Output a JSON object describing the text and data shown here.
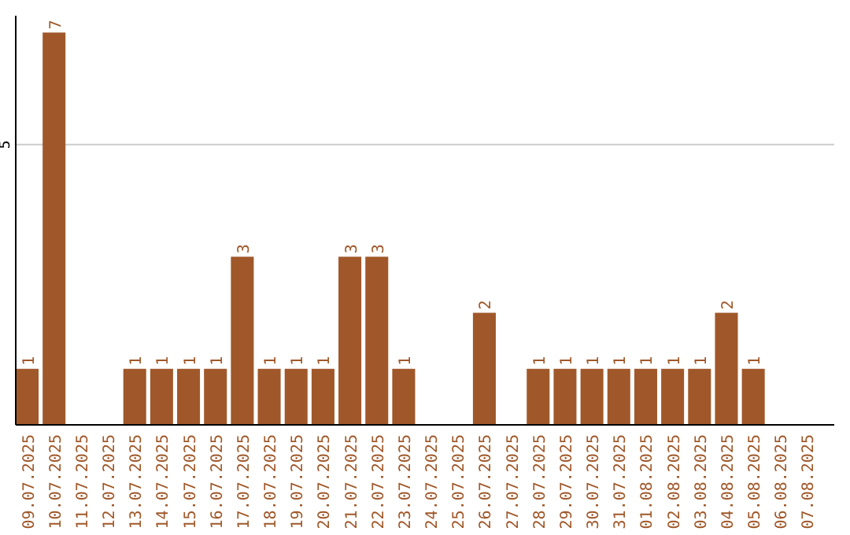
{
  "chart_data": {
    "type": "bar",
    "categories": [
      "09.07.2025",
      "10.07.2025",
      "11.07.2025",
      "12.07.2025",
      "13.07.2025",
      "14.07.2025",
      "15.07.2025",
      "16.07.2025",
      "17.07.2025",
      "18.07.2025",
      "19.07.2025",
      "20.07.2025",
      "21.07.2025",
      "22.07.2025",
      "23.07.2025",
      "24.07.2025",
      "25.07.2025",
      "26.07.2025",
      "27.07.2025",
      "28.07.2025",
      "29.07.2025",
      "30.07.2025",
      "31.07.2025",
      "01.08.2025",
      "02.08.2025",
      "03.08.2025",
      "04.08.2025",
      "05.08.2025",
      "06.08.2025",
      "07.08.2025"
    ],
    "values": [
      1,
      7,
      null,
      null,
      1,
      1,
      1,
      1,
      3,
      1,
      1,
      1,
      3,
      3,
      1,
      null,
      null,
      2,
      null,
      1,
      1,
      1,
      1,
      1,
      1,
      1,
      2,
      1,
      null,
      null
    ],
    "color": "#a0582a",
    "ylim": [
      0,
      7.3
    ],
    "yticks": [
      5
    ],
    "grid": "y",
    "data_labels": true
  }
}
